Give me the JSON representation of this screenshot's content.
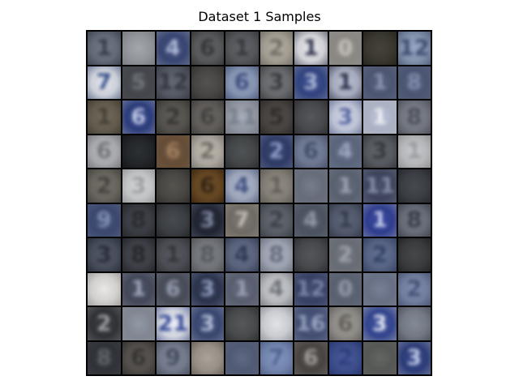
{
  "figure": {
    "title": "Dataset 1 Samples"
  },
  "samples": [
    [
      [
        "#6a7180",
        "#2d3444"
      ],
      [
        "#9ea2a8",
        "#8a8f96"
      ],
      [
        "#39487a",
        "#aeb8d6"
      ],
      [
        "#5b5d5f",
        "#2b2c2d"
      ],
      [
        "#595b60",
        "#2d2f33"
      ],
      [
        "#b2ab9e",
        "#6d6a63"
      ],
      [
        "#e6e7ec",
        "#272c45"
      ],
      [
        "#96938e",
        "#c6c3bd"
      ],
      [
        "#3a382d",
        "#23221b"
      ],
      [
        "#8fa0be",
        "#3a4b72"
      ]
    ],
    [
      [
        "#e2e5ee",
        "#2f4a8a"
      ],
      [
        "#45484d",
        "#6b6f74"
      ],
      [
        "#5a5f6b",
        "#2e323b"
      ],
      [
        "#4a4846",
        "#2e2d2b"
      ],
      [
        "#8fa0c0",
        "#36477a"
      ],
      [
        "#6f7074",
        "#2f3033"
      ],
      [
        "#32468a",
        "#aab6d6"
      ],
      [
        "#b5bccf",
        "#1f2540"
      ],
      [
        "#505a79",
        "#8792b0"
      ],
      [
        "#4e5a7a",
        "#7d8aad"
      ]
    ],
    [
      [
        "#6a6252",
        "#3c372d"
      ],
      [
        "#2c3f86",
        "#c3ccea"
      ],
      [
        "#595651",
        "#2e2c29"
      ],
      [
        "#64615e",
        "#3a3836"
      ],
      [
        "#9fa5b3",
        "#7d8391"
      ],
      [
        "#4a4542",
        "#252220"
      ],
      [
        "#4b4c50",
        "#2a2b2e"
      ],
      [
        "#d0d6ea",
        "#4e60a0"
      ],
      [
        "#bcc4d9",
        "#f1f3f8"
      ],
      [
        "#7b7f8a",
        "#454953"
      ]
    ],
    [
      [
        "#b7b8bd",
        "#6e7076"
      ],
      [
        "#202327",
        "#121416"
      ],
      [
        "#6b5038",
        "#a07a57"
      ],
      [
        "#bdb7ad",
        "#6c665e"
      ],
      [
        "#45484a",
        "#242628"
      ],
      [
        "#2e3c6c",
        "#8d9cc8"
      ],
      [
        "#74809c",
        "#3b4662"
      ],
      [
        "#5f6b85",
        "#9aa5bd"
      ],
      [
        "#5a5e64",
        "#2c2f33"
      ],
      [
        "#c8c9cc",
        "#9b9ca0"
      ]
    ],
    [
      [
        "#6e6b63",
        "#3c3a35"
      ],
      [
        "#d6d7d8",
        "#9c9d9f"
      ],
      [
        "#4a4944",
        "#2b2a27"
      ],
      [
        "#6b4820",
        "#2a1a08"
      ],
      [
        "#aab4cc",
        "#3b4b7e"
      ],
      [
        "#8d887f",
        "#5d5952"
      ],
      [
        "#6e7483",
        "#9aa0ae"
      ],
      [
        "#5e6677",
        "#9aa2b3"
      ],
      [
        "#3e4661",
        "#8a93ad"
      ],
      [
        "#3b3f45",
        "#1f2226"
      ]
    ],
    [
      [
        "#3c4a76",
        "#7e8cb5"
      ],
      [
        "#3a3d44",
        "#1d1f23"
      ],
      [
        "#3c3f44",
        "#1e2024"
      ],
      [
        "#1e2332",
        "#7b84a0"
      ],
      [
        "#77726a",
        "#c5bfb4"
      ],
      [
        "#5c626c",
        "#343941"
      ],
      [
        "#4e5666",
        "#8c94a3"
      ],
      [
        "#545d72",
        "#2c3445"
      ],
      [
        "#2f3f9a",
        "#c5cdf0"
      ],
      [
        "#6d7381",
        "#2f3440"
      ]
    ],
    [
      [
        "#4a5061",
        "#1e2230"
      ],
      [
        "#3e4048",
        "#1a1b20"
      ],
      [
        "#4f5058",
        "#2a2b31"
      ],
      [
        "#7a7d82",
        "#4e5156"
      ],
      [
        "#5f6985",
        "#252f4d"
      ],
      [
        "#aab0c0",
        "#5e6577"
      ],
      [
        "#4a4b4f",
        "#262729"
      ],
      [
        "#6f737d",
        "#9ea2ab"
      ],
      [
        "#5b6a8f",
        "#2b3a60"
      ],
      [
        "#3b3c3e",
        "#1b1c1e"
      ]
    ],
    [
      [
        "#e8e6e4",
        "#a8a2a4"
      ],
      [
        "#454a5c",
        "#9da5bb"
      ],
      [
        "#4a4f5c",
        "#9098ab"
      ],
      [
        "#2b3450",
        "#8c98bd"
      ],
      [
        "#5d6477",
        "#9aa1b3"
      ],
      [
        "#c9cbd0",
        "#6b6e76"
      ],
      [
        "#37426a",
        "#7e8ab0"
      ],
      [
        "#5e6678",
        "#8f97a8"
      ],
      [
        "#6e788f",
        "#a4adc1"
      ],
      [
        "#7a88ac",
        "#3e4b72"
      ]
    ],
    [
      [
        "#303236",
        "#9a9ea4"
      ],
      [
        "#8c92a0",
        "#b8bdc8"
      ],
      [
        "#e7ebf5",
        "#3449a0"
      ],
      [
        "#3a4a78",
        "#b6c0dc"
      ],
      [
        "#4c4d4f",
        "#282929"
      ],
      [
        "#dfe1e6",
        "#8a8f9c"
      ],
      [
        "#44517a",
        "#9aa6c6"
      ],
      [
        "#9a9792",
        "#5c5955"
      ],
      [
        "#34489a",
        "#e6eaf7"
      ],
      [
        "#7c8290",
        "#454a56"
      ]
    ],
    [
      [
        "#2f3238",
        "#5a5e66"
      ],
      [
        "#56524e",
        "#2b2926"
      ],
      [
        "#7a8396",
        "#3d4658"
      ],
      [
        "#a39c92",
        "#5f5a52"
      ],
      [
        "#545f7c",
        "#7e89a6"
      ],
      [
        "#7b90bd",
        "#4a5f90"
      ],
      [
        "#4a4643",
        "#9d9893"
      ],
      [
        "#3d5196",
        "#25387a"
      ],
      [
        "#5a5c5a",
        "#8a8c8a"
      ],
      [
        "#2c3e82",
        "#c5cfee"
      ]
    ]
  ],
  "glyphs": [
    [
      "1",
      "",
      "4",
      "6",
      "1",
      "2",
      "1",
      "0",
      "",
      "12"
    ],
    [
      "7",
      "5",
      "12",
      "",
      "6",
      "3",
      "3",
      "1",
      "1",
      "8"
    ],
    [
      "1",
      "6",
      "2",
      "6",
      "11",
      "5",
      "",
      "3",
      "1",
      "8"
    ],
    [
      "6",
      "",
      "6",
      "2",
      "",
      "2",
      "6",
      "4",
      "3",
      "1"
    ],
    [
      "2",
      "3",
      "",
      "6",
      "4",
      "1",
      "",
      "1",
      "11",
      ""
    ],
    [
      "9",
      "8",
      "",
      "3",
      "7",
      "2",
      "4",
      "1",
      "1",
      "8"
    ],
    [
      "3",
      "8",
      "1",
      "8",
      "4",
      "8",
      "",
      "2",
      "2",
      ""
    ],
    [
      "",
      "1",
      "6",
      "3",
      "1",
      "4",
      "12",
      "0",
      "",
      "2"
    ],
    [
      "2",
      "",
      "21",
      "3",
      "",
      "",
      "16",
      "6",
      "3",
      ""
    ],
    [
      "8",
      "6",
      "9",
      "",
      "",
      "7",
      "6",
      "2",
      "",
      "3"
    ]
  ]
}
